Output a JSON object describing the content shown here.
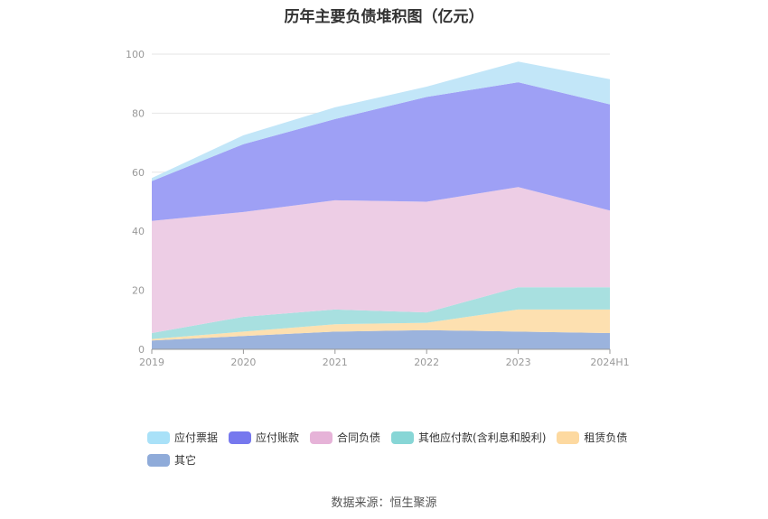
{
  "title": "历年主要负债堆积图（亿元）",
  "source": "数据来源：恒生聚源",
  "chart_data": {
    "type": "area",
    "stacked": true,
    "categories": [
      "2019",
      "2020",
      "2021",
      "2022",
      "2023",
      "2024H1"
    ],
    "ylim": [
      0,
      100
    ],
    "yticks": [
      0,
      20,
      40,
      60,
      80,
      100
    ],
    "grid": true,
    "legend_position": "bottom",
    "series": [
      {
        "name": "其它",
        "color": "#9bb3dd",
        "values": [
          3.0,
          4.5,
          6.0,
          6.5,
          6.0,
          5.5
        ]
      },
      {
        "name": "租赁负债",
        "color": "#fde0b0",
        "values": [
          0.5,
          1.5,
          2.5,
          2.5,
          7.5,
          8.0
        ]
      },
      {
        "name": "其他应付款(含利息和股利)",
        "color": "#a8e0e0",
        "values": [
          2.0,
          5.0,
          5.0,
          3.5,
          7.5,
          7.5
        ]
      },
      {
        "name": "合同负债",
        "color": "#edcde5",
        "values": [
          38.0,
          35.5,
          37.0,
          37.5,
          34.0,
          26.0
        ]
      },
      {
        "name": "应付账款",
        "color": "#9ea0f5",
        "values": [
          13.5,
          23.0,
          27.5,
          35.5,
          35.5,
          36.0
        ]
      },
      {
        "name": "应付票据",
        "color": "#c2e6f8",
        "values": [
          1.0,
          3.0,
          4.0,
          3.5,
          7.0,
          8.5
        ]
      }
    ],
    "legend_order": [
      "应付票据",
      "应付账款",
      "合同负债",
      "其他应付款(含利息和股利)",
      "租赁负债",
      "其它"
    ],
    "legend_colors": {
      "应付票据": "#a9e1f8",
      "应付账款": "#7678ee",
      "合同负债": "#e6b3d8",
      "其他应付款(含利息和股利)": "#87d6d6",
      "租赁负债": "#fdd9a0",
      "其它": "#8fabd9"
    }
  }
}
